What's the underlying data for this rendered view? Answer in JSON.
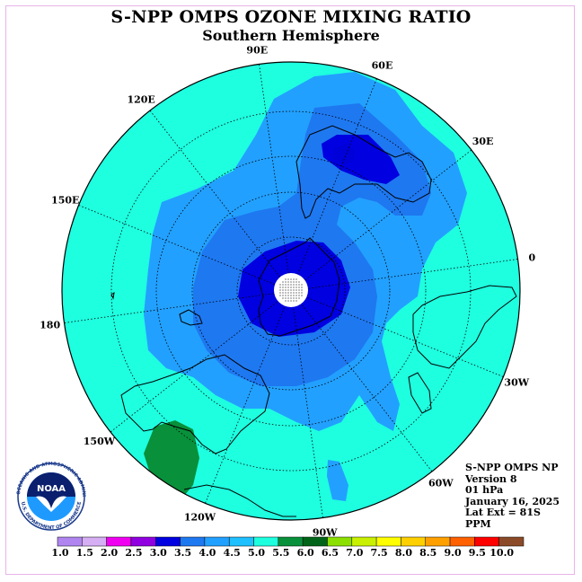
{
  "title": "S-NPP OMPS OZONE MIXING RATIO",
  "subtitle": "Southern Hemisphere",
  "longitude_labels": [
    {
      "text": "0",
      "lon": 0
    },
    {
      "text": "30E",
      "lon": 30
    },
    {
      "text": "60E",
      "lon": 60
    },
    {
      "text": "90E",
      "lon": 90
    },
    {
      "text": "120E",
      "lon": 120
    },
    {
      "text": "150E",
      "lon": 150
    },
    {
      "text": "180",
      "lon": 180
    },
    {
      "text": "150W",
      "lon": -150
    },
    {
      "text": "120W",
      "lon": -120
    },
    {
      "text": "90W",
      "lon": -90
    },
    {
      "text": "60W",
      "lon": -60
    },
    {
      "text": "30W",
      "lon": -30
    }
  ],
  "info": {
    "instrument": "S-NPP OMPS NP",
    "version": "Version 8",
    "level": "01 hPa",
    "date": "January 16, 2025",
    "lat_ext": "Lat Ext = 81S",
    "units": "PPM"
  },
  "logo": {
    "text": "NOAA",
    "ring_text": "NATIONAL OCEANIC AND ATMOSPHERIC ADMINISTRATION",
    "ring_text_bottom": "U.S. DEPARTMENT OF COMMERCE"
  },
  "colorbar": {
    "labels": [
      "1.0",
      "1.5",
      "2.0",
      "2.5",
      "3.0",
      "3.5",
      "4.0",
      "4.5",
      "5.0",
      "5.5",
      "6.0",
      "6.5",
      "7.0",
      "7.5",
      "8.0",
      "8.5",
      "9.0",
      "9.5",
      "10.0"
    ],
    "colors": [
      "#b085f0",
      "#d6aef4",
      "#f000f0",
      "#9000e0",
      "#0000e0",
      "#1e78f0",
      "#22a0ff",
      "#1ec0ff",
      "#1effe0",
      "#08903a",
      "#006418",
      "#8ce000",
      "#c8f000",
      "#ffff00",
      "#ffd000",
      "#ffa000",
      "#ff6000",
      "#ff0000",
      "#8b4a28"
    ]
  },
  "colors": {
    "background_field": "#1effe0",
    "level_4_0": "#22a0ff",
    "level_3_5": "#1e78f0",
    "level_3_0": "#0000e0",
    "level_5_5": "#08903a"
  }
}
